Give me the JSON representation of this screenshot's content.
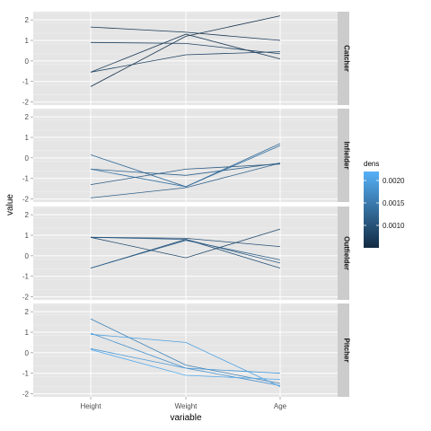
{
  "chart_data": {
    "type": "line",
    "xlabel": "variable",
    "ylabel": "value",
    "categories": [
      "Height",
      "Weight",
      "Age"
    ],
    "yticks": [
      -2,
      -1,
      0,
      1,
      2
    ],
    "ylim": [
      -2.15,
      2.4
    ],
    "legend": {
      "title": "dens",
      "placement": "right",
      "range": [
        0.0005,
        0.0022
      ],
      "ticks": [
        {
          "value": 0.002,
          "label": "0.0020"
        },
        {
          "value": 0.0015,
          "label": "0.0015"
        },
        {
          "value": 0.001,
          "label": "0.0010"
        }
      ],
      "low_color": "#132b43",
      "high_color": "#56b1f7"
    },
    "panels": [
      {
        "label": "Catcher",
        "series": [
          {
            "values": [
              1.65,
              1.4,
              1.0
            ],
            "dens": 0.0007
          },
          {
            "values": [
              0.9,
              0.85,
              0.35
            ],
            "dens": 0.0008
          },
          {
            "values": [
              -0.55,
              1.3,
              0.1
            ],
            "dens": 0.0007
          },
          {
            "values": [
              -0.55,
              0.3,
              0.45
            ],
            "dens": 0.0008
          },
          {
            "values": [
              -1.25,
              1.2,
              2.2
            ],
            "dens": 0.0006
          }
        ]
      },
      {
        "label": "Infielder",
        "series": [
          {
            "values": [
              0.15,
              -1.4,
              0.7
            ],
            "dens": 0.0013
          },
          {
            "values": [
              -0.55,
              -0.85,
              -0.25
            ],
            "dens": 0.0012
          },
          {
            "values": [
              -0.55,
              -1.4,
              0.6
            ],
            "dens": 0.0014
          },
          {
            "values": [
              -1.3,
              -0.55,
              -0.3
            ],
            "dens": 0.0011
          },
          {
            "values": [
              -1.95,
              -1.45,
              -0.25
            ],
            "dens": 0.0012
          }
        ]
      },
      {
        "label": "Outfielder",
        "series": [
          {
            "values": [
              0.9,
              0.85,
              0.45
            ],
            "dens": 0.001
          },
          {
            "values": [
              0.9,
              0.8,
              -0.35
            ],
            "dens": 0.0011
          },
          {
            "values": [
              0.9,
              -0.1,
              1.3
            ],
            "dens": 0.0009
          },
          {
            "values": [
              -0.6,
              0.8,
              -0.6
            ],
            "dens": 0.001
          },
          {
            "values": [
              -0.6,
              0.75,
              -0.2
            ],
            "dens": 0.0012
          }
        ]
      },
      {
        "label": "Pitcher",
        "series": [
          {
            "values": [
              1.65,
              -0.6,
              -1.5
            ],
            "dens": 0.0016
          },
          {
            "values": [
              0.95,
              -0.75,
              -1.6
            ],
            "dens": 0.0018
          },
          {
            "values": [
              0.9,
              0.5,
              -1.65
            ],
            "dens": 0.002
          },
          {
            "values": [
              0.2,
              -0.75,
              -1.0
            ],
            "dens": 0.0019
          },
          {
            "values": [
              0.15,
              -1.1,
              -1.3
            ],
            "dens": 0.0021
          }
        ]
      }
    ]
  }
}
